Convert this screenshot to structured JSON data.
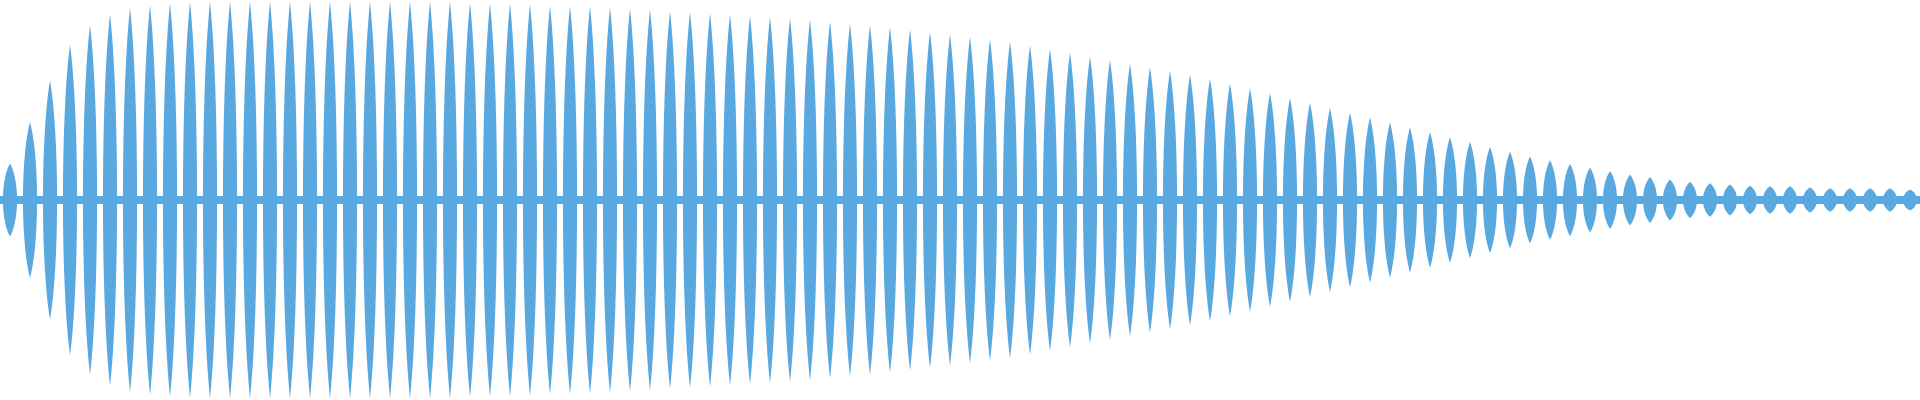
{
  "waveform": {
    "color": "#5aa8e0",
    "background": "#ffffff",
    "lobe_count": 96,
    "amplitude_envelope": [
      0.08,
      0.42,
      0.76,
      0.92,
      0.97,
      0.99,
      1.0,
      1.0,
      1.0,
      1.0,
      1.0,
      1.0,
      1.0,
      1.0,
      1.0,
      0.99,
      0.99,
      0.98,
      0.98,
      0.97,
      0.96,
      0.95,
      0.94,
      0.93,
      0.92,
      0.91,
      0.89,
      0.88,
      0.86,
      0.84,
      0.82,
      0.8,
      0.77,
      0.74,
      0.71,
      0.68,
      0.65,
      0.62,
      0.58,
      0.54,
      0.5,
      0.46,
      0.42,
      0.38,
      0.34,
      0.3,
      0.26,
      0.22,
      0.19,
      0.16,
      0.13,
      0.11,
      0.09,
      0.08,
      0.07,
      0.07,
      0.06,
      0.06,
      0.06,
      0.05
    ],
    "baseline_fraction": 0.5
  }
}
